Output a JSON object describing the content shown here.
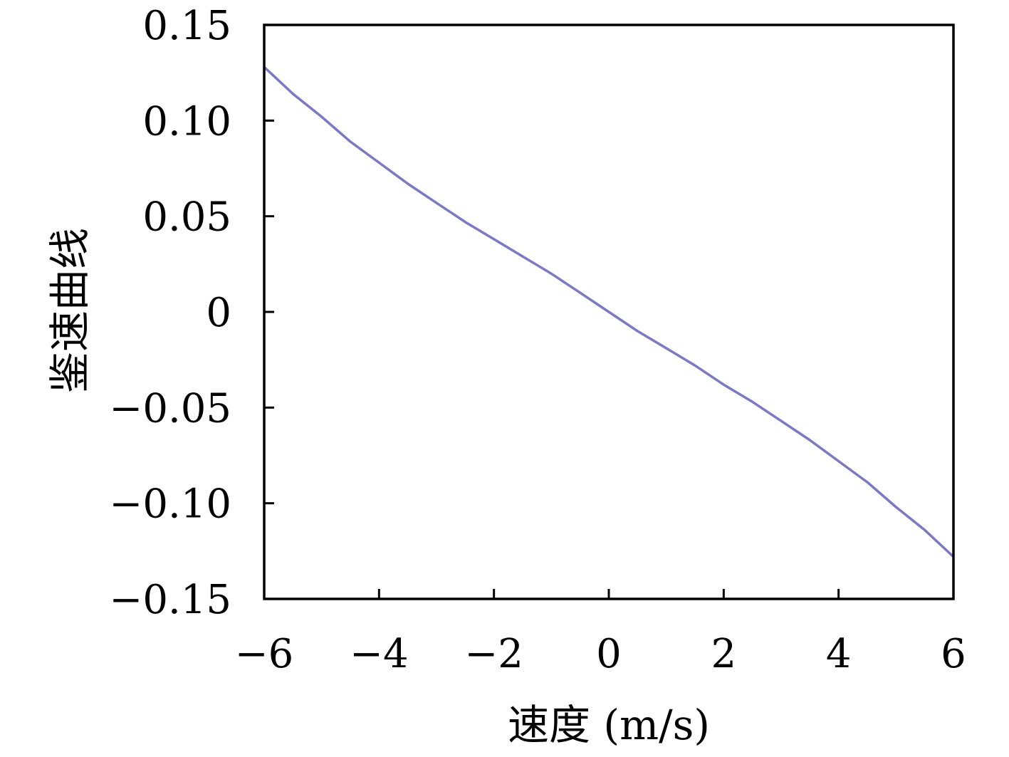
{
  "chart_data": {
    "type": "line",
    "title": "",
    "xlabel": "速度 (m/s)",
    "ylabel": "鉴速曲线",
    "xlim": [
      -6,
      6
    ],
    "ylim": [
      -0.15,
      0.15
    ],
    "xticks": [
      -6,
      -4,
      -2,
      0,
      2,
      4,
      6
    ],
    "xtick_labels": [
      "−6",
      "−4",
      "−2",
      "0",
      "2",
      "4",
      "6"
    ],
    "yticks": [
      0.15,
      0.1,
      0.05,
      0,
      -0.05,
      -0.1,
      -0.15
    ],
    "ytick_labels": [
      "0.15",
      "0.10",
      "0.05",
      "0",
      "−0.05",
      "−0.10",
      "−0.15"
    ],
    "grid": false,
    "legend": "none",
    "series": [
      {
        "color": "#7b78c4",
        "x": [
          -6,
          -5.5,
          -5,
          -4.5,
          -4,
          -3.5,
          -3,
          -2.5,
          -2,
          -1.5,
          -1,
          -0.5,
          0,
          0.5,
          1,
          1.5,
          2,
          2.5,
          3,
          3.5,
          4,
          4.5,
          5,
          5.5,
          6
        ],
        "y": [
          0.128,
          0.114,
          0.102,
          0.089,
          0.078,
          0.067,
          0.057,
          0.047,
          0.038,
          0.029,
          0.02,
          0.01,
          0.0,
          -0.01,
          -0.019,
          -0.028,
          -0.038,
          -0.047,
          -0.057,
          -0.067,
          -0.078,
          -0.089,
          -0.102,
          -0.114,
          -0.128
        ]
      }
    ]
  }
}
